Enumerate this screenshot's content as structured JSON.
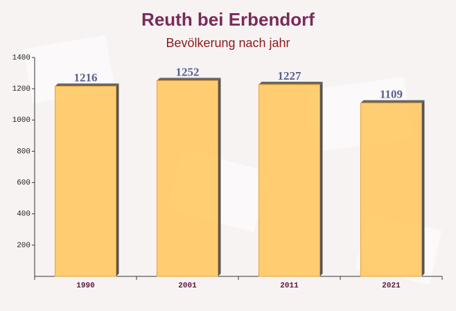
{
  "chart_data": {
    "type": "bar",
    "title": "Reuth bei Erbendorf",
    "subtitle": "Bevölkerung nach jahr",
    "categories": [
      "1990",
      "2001",
      "2011",
      "2021"
    ],
    "values": [
      1216,
      1252,
      1227,
      1109
    ],
    "color": "#ffc966",
    "ylim": [
      0,
      1400
    ],
    "yticks": [
      200,
      400,
      600,
      800,
      1000,
      1200,
      1400
    ],
    "grid": false
  }
}
